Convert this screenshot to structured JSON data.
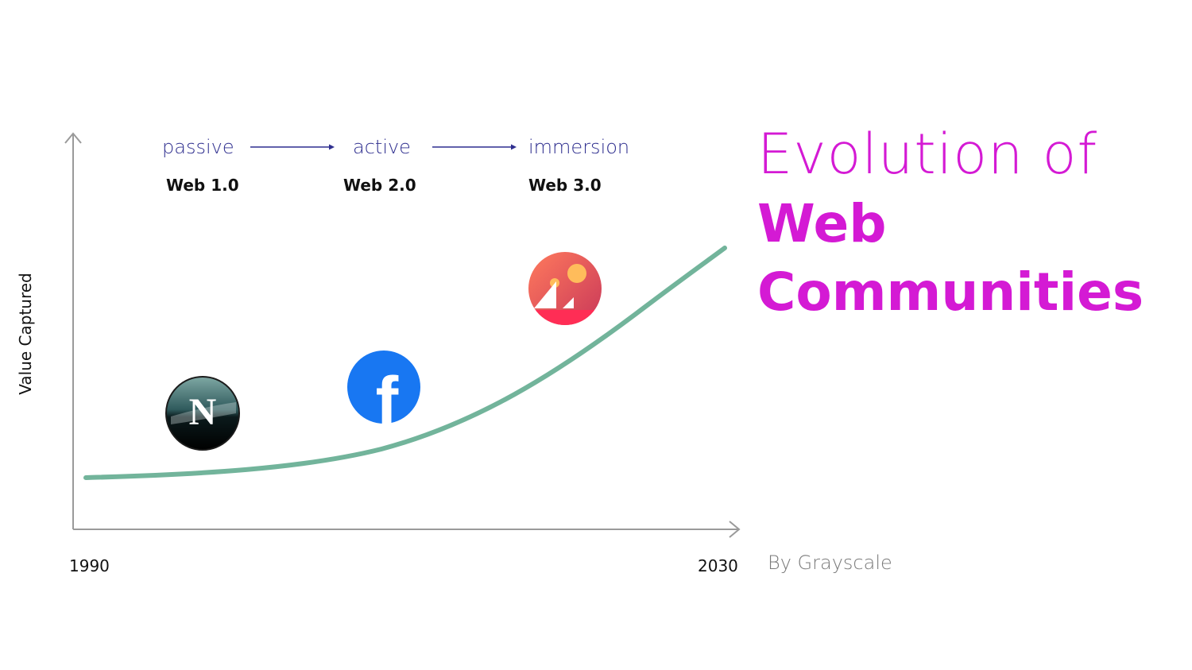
{
  "stages": [
    {
      "mode": "passive",
      "web": "Web 1.0",
      "logo": "netscape-logo"
    },
    {
      "mode": "active",
      "web": "Web 2.0",
      "logo": "facebook-logo"
    },
    {
      "mode": "immersion",
      "web": "Web 3.0",
      "logo": "decentraland-logo"
    }
  ],
  "axes": {
    "ylabel": "Value Captured",
    "x_start": "1990",
    "x_end": "2030"
  },
  "title": {
    "line1": "Evolution of",
    "line2": "Web",
    "line3": "Communities"
  },
  "byline": "By Grayscale",
  "logo_letters": {
    "netscape": "N",
    "facebook": "f"
  },
  "colors": {
    "title": "#d41ad4",
    "curve": "#72b49b",
    "stage_text": "#2f2f8f",
    "axis": "#9a9a9a",
    "byline": "#7a7a7a"
  }
}
